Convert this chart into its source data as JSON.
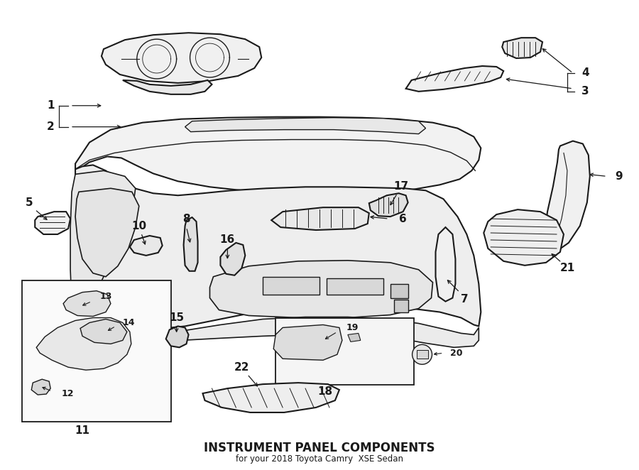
{
  "title": "INSTRUMENT PANEL COMPONENTS",
  "subtitle": "for your 2018 Toyota Camry  XSE Sedan",
  "bg_color": "#ffffff",
  "line_color": "#1a1a1a",
  "fig_width": 9.0,
  "fig_height": 6.62,
  "dpi": 100
}
